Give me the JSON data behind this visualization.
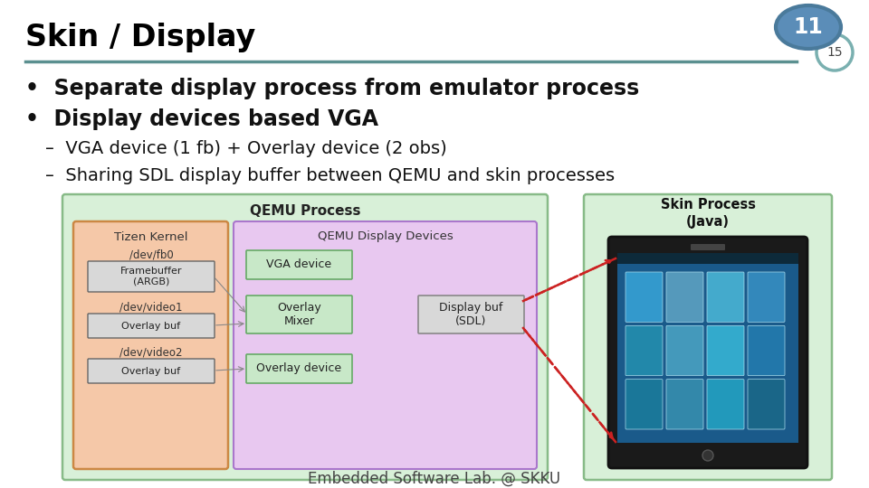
{
  "title": "Skin / Display",
  "title_color": "#000000",
  "title_fontsize": 24,
  "slide_number_big": "11",
  "slide_number_small": "15",
  "big_circle_color": "#5b8db8",
  "big_circle_outline": "#4a7a9b",
  "small_circle_color": "#7ab0b0",
  "separator_color": "#5b9090",
  "bullet1": "Separate display process from emulator process",
  "bullet2": "Display devices based VGA",
  "sub1": "VGA device (1 fb) + Overlay device (2 obs)",
  "sub2": "Sharing SDL display buffer between QEMU and skin processes",
  "footer": "Embedded Software Lab. @ SKKU",
  "bg_color": "#ffffff",
  "bullet_fontsize": 17,
  "sub_fontsize": 14,
  "footer_fontsize": 12,
  "qemu_outer_bg": "#d8f0d8",
  "qemu_outer_edge": "#88bb88",
  "tizen_bg": "#f5c8a8",
  "tizen_edge": "#cc8844",
  "tizen_inner_bg": "#c8e8c8",
  "tizen_inner_edge": "#66aa66",
  "tizen_buf_bg": "#d8d8d8",
  "tizen_buf_edge": "#666666",
  "qdd_bg": "#e8c8f0",
  "qdd_edge": "#aa77cc",
  "qdd_inner_bg": "#c8e8c8",
  "qdd_inner_edge": "#66aa66",
  "sdl_bg": "#d8d8d8",
  "sdl_edge": "#888888",
  "skin_outer_bg": "#d8f0d8",
  "skin_outer_edge": "#88bb88",
  "phone_body": "#222222",
  "phone_screen": "#1a5a8a",
  "arrow_color": "#cc2222"
}
